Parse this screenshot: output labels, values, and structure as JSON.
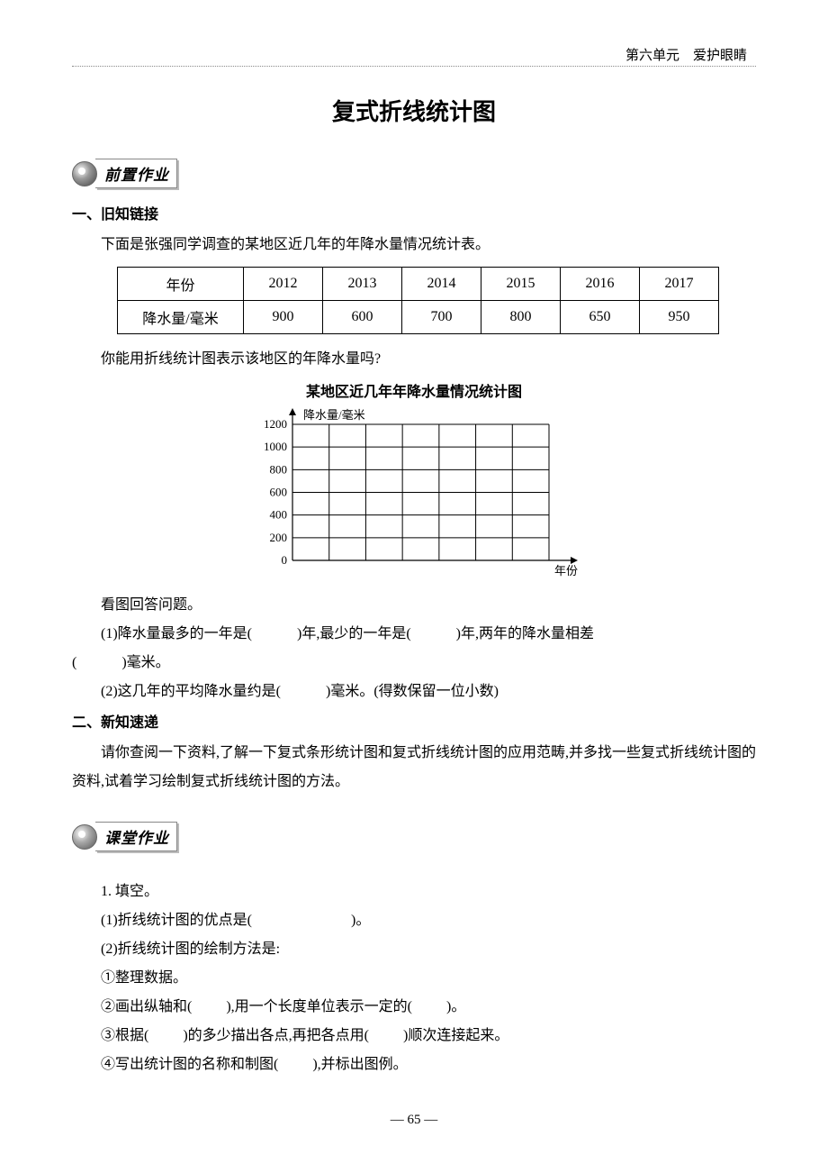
{
  "header": {
    "unit": "第六单元　爱护眼睛"
  },
  "title": "复式折线统计图",
  "badge1": "前置作业",
  "badge2": "课堂作业",
  "sec1": {
    "heading": "一、旧知链接",
    "intro": "下面是张强同学调查的某地区近几年的年降水量情况统计表。",
    "table": {
      "row_header_year": "年份",
      "row_header_rain": "降水量/毫米",
      "years": [
        "2012",
        "2013",
        "2014",
        "2015",
        "2016",
        "2017"
      ],
      "values": [
        "900",
        "600",
        "700",
        "800",
        "650",
        "950"
      ]
    },
    "ask": "你能用折线统计图表示该地区的年降水量吗?",
    "chart": {
      "title": "某地区近几年年降水量情况统计图",
      "y_label": "降水量/毫米",
      "x_label": "年份",
      "y_ticks": [
        "0",
        "200",
        "400",
        "600",
        "800",
        "1000",
        "1200"
      ],
      "ylim": [
        0,
        1200
      ],
      "ytick_step": 200,
      "grid_cols": 7,
      "grid_rows": 6,
      "grid_color": "#000000",
      "background_color": "#ffffff",
      "axis_color": "#000000",
      "label_fontsize": 13
    },
    "look": "看图回答问题。",
    "q1_a": "(1)降水量最多的一年是(",
    "q1_b": ")年,最少的一年是(",
    "q1_c": ")年,两年的降水量相差",
    "q1_d": "(",
    "q1_e": ")毫米。",
    "q2_a": "(2)这几年的平均降水量约是(",
    "q2_b": ")毫米。(得数保留一位小数)"
  },
  "sec2": {
    "heading": "二、新知速递",
    "text": "请你查阅一下资料,了解一下复式条形统计图和复式折线统计图的应用范畴,并多找一些复式折线统计图的资料,试着学习绘制复式折线统计图的方法。"
  },
  "sec3": {
    "q1": "1. 填空。",
    "p1a": "(1)折线统计图的优点是(",
    "p1b": ")。",
    "p2": "(2)折线统计图的绘制方法是:",
    "s1": "①整理数据。",
    "s2a": "②画出纵轴和(",
    "s2b": "),用一个长度单位表示一定的(",
    "s2c": ")。",
    "s3a": "③根据(",
    "s3b": ")的多少描出各点,再把各点用(",
    "s3c": ")顺次连接起来。",
    "s4a": "④写出统计图的名称和制图(",
    "s4b": "),并标出图例。"
  },
  "page": "— 65 —"
}
